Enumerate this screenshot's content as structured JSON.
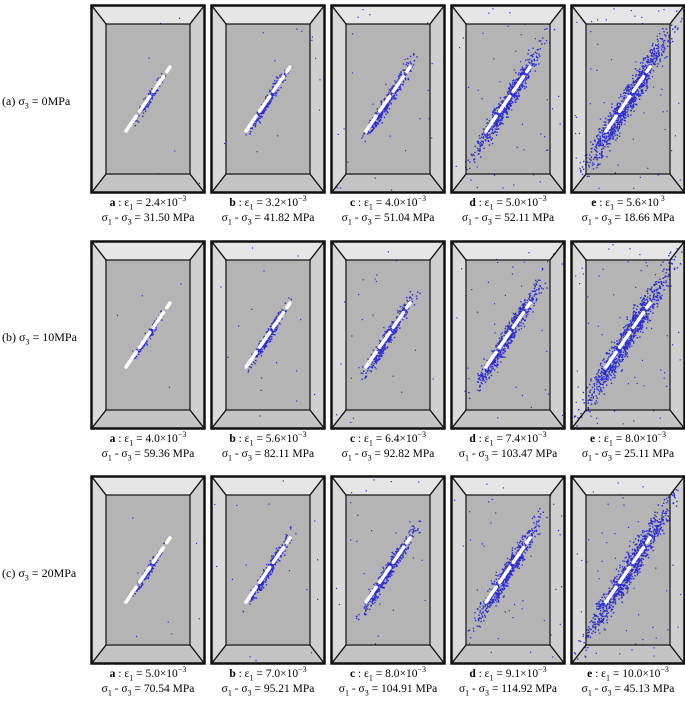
{
  "colors": {
    "crack": "#2a2bd4",
    "frame": "#111111",
    "face": "#d2d2d2",
    "inner": "#b4b4b4",
    "fault": "#ffffff"
  },
  "rows": [
    {
      "label": "(a) σ₃ = 0MPa",
      "label_prefix": "(a) σ",
      "label_sub": "3",
      "label_suffix": " = 0MPa",
      "panels": [
        {
          "letter": "a",
          "strain_mant": "2.4",
          "strain_exp": "−3",
          "stress": "31.50",
          "level": 0.1
        },
        {
          "letter": "b",
          "strain_mant": "3.2",
          "strain_exp": "−3",
          "stress": "41.82",
          "level": 0.22
        },
        {
          "letter": "c",
          "strain_mant": "4.0",
          "strain_exp": "−3",
          "stress": "51.04",
          "level": 0.4
        },
        {
          "letter": "d",
          "strain_mant": "5.0",
          "strain_exp": "−3",
          "stress": "52.11",
          "level": 0.7
        },
        {
          "letter": "e",
          "strain_mant": "5.6",
          "strain_exp": " 3",
          "stress": "18.66",
          "level": 1.0
        }
      ]
    },
    {
      "label": "(b) σ₃ = 10MPa",
      "label_prefix": "(b) σ",
      "label_sub": "3",
      "label_suffix": " = 10MPa",
      "panels": [
        {
          "letter": "a",
          "strain_mant": "4.0",
          "strain_exp": "−3",
          "stress": "59.36",
          "level": 0.1
        },
        {
          "letter": "b",
          "strain_mant": "5.6",
          "strain_exp": "−3",
          "stress": "82.11",
          "level": 0.25
        },
        {
          "letter": "c",
          "strain_mant": "6.4",
          "strain_exp": "−3",
          "stress": "92.82",
          "level": 0.4
        },
        {
          "letter": "d",
          "strain_mant": "7.4",
          "strain_exp": "−3",
          "stress": "103.47",
          "level": 0.65
        },
        {
          "letter": "e",
          "strain_mant": "8.0",
          "strain_exp": "−3",
          "stress": "25.11",
          "level": 1.0
        }
      ]
    },
    {
      "label": "(c) σ₃ = 20MPa",
      "label_prefix": "(c) σ",
      "label_sub": "3",
      "label_suffix": " = 20MPa",
      "panels": [
        {
          "letter": "a",
          "strain_mant": "5.0",
          "strain_exp": "−3",
          "stress": "70.54",
          "level": 0.12
        },
        {
          "letter": "b",
          "strain_mant": "7.0",
          "strain_exp": "−3",
          "stress": "95.21",
          "level": 0.3
        },
        {
          "letter": "c",
          "strain_mant": "8.0",
          "strain_exp": "−3",
          "stress": "104.91",
          "level": 0.45
        },
        {
          "letter": "d",
          "strain_mant": "9.1",
          "strain_exp": "−3",
          "stress": "114.92",
          "level": 0.65
        },
        {
          "letter": "e",
          "strain_mant": "10.0",
          "strain_exp": "−3",
          "stress": "45.13",
          "level": 1.0
        }
      ]
    }
  ]
}
